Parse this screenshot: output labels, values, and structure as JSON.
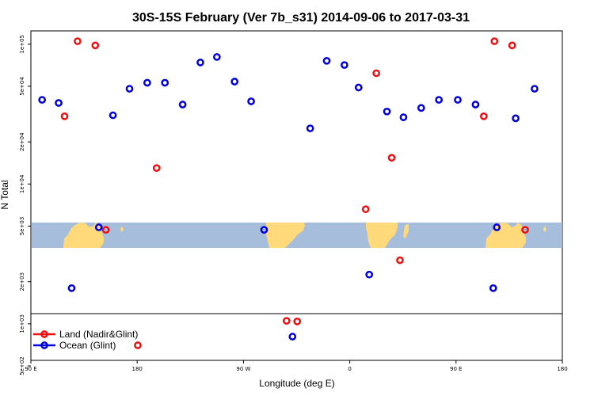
{
  "chart_data": {
    "type": "scatter",
    "title": "30S-15S February (Ver 7b_s31)   2014-09-06 to 2017-03-31",
    "xlabel": "Longitude (deg E)",
    "ylabel": "N Total",
    "y_scale": "log",
    "xlim": [
      90,
      540
    ],
    "ylim": [
      500,
      140000
    ],
    "x_ticks": [
      {
        "value": 90,
        "label": "90 E"
      },
      {
        "value": 180,
        "label": "180"
      },
      {
        "value": 270,
        "label": "90 W"
      },
      {
        "value": 360,
        "label": "0"
      },
      {
        "value": 450,
        "label": "90 E"
      },
      {
        "value": 540,
        "label": "180"
      }
    ],
    "y_ticks": [
      {
        "value": 500,
        "label": "5e+02"
      },
      {
        "value": 1000,
        "label": "1e+03"
      },
      {
        "value": 2000,
        "label": "2e+03"
      },
      {
        "value": 5000,
        "label": "5e+03"
      },
      {
        "value": 10000,
        "label": "1e+04"
      },
      {
        "value": 20000,
        "label": "2e+04"
      },
      {
        "value": 50000,
        "label": "5e+04"
      },
      {
        "value": 100000,
        "label": "1e+05"
      }
    ],
    "legend_position": "bottom-left",
    "series": [
      {
        "name": "Land (Nadir&Glint)",
        "color": "#ee1111",
        "points": [
          [
            118.5,
            30500
          ],
          [
            129.5,
            105000
          ],
          [
            144.5,
            98000
          ],
          [
            153.5,
            4700
          ],
          [
            196.5,
            13000
          ],
          [
            306.5,
            1050
          ],
          [
            315.5,
            1040
          ],
          [
            373.5,
            6600
          ],
          [
            382.5,
            62000
          ],
          [
            395.5,
            15400
          ],
          [
            402.5,
            2850
          ],
          [
            473.5,
            30500
          ],
          [
            482.5,
            105000
          ],
          [
            497.5,
            98000
          ],
          [
            508.5,
            4700
          ]
        ]
      },
      {
        "name": "Ocean (Glint)",
        "color": "#0000dd",
        "points": [
          [
            99.5,
            40000
          ],
          [
            113.5,
            38000
          ],
          [
            124.5,
            1800
          ],
          [
            147.5,
            4900
          ],
          [
            159.5,
            31000
          ],
          [
            173.5,
            48000
          ],
          [
            188.5,
            53000
          ],
          [
            203.5,
            53000
          ],
          [
            218.5,
            37000
          ],
          [
            233.5,
            74000
          ],
          [
            247.5,
            81000
          ],
          [
            262.5,
            54000
          ],
          [
            276.5,
            39000
          ],
          [
            287.5,
            4700
          ],
          [
            311.5,
            810
          ],
          [
            326.5,
            25000
          ],
          [
            340.5,
            76000
          ],
          [
            355.5,
            71000
          ],
          [
            367.5,
            49000
          ],
          [
            376.5,
            2250
          ],
          [
            391.5,
            33000
          ],
          [
            405.5,
            30000
          ],
          [
            420.5,
            35000
          ],
          [
            435.5,
            40000
          ],
          [
            451.5,
            40000
          ],
          [
            466.5,
            37000
          ],
          [
            481.5,
            1800
          ],
          [
            484.5,
            4900
          ],
          [
            500.5,
            29500
          ],
          [
            516.5,
            48000
          ]
        ]
      }
    ],
    "outlier_in_legend_area": {
      "x": 180.5,
      "color": "#ee1111"
    }
  }
}
